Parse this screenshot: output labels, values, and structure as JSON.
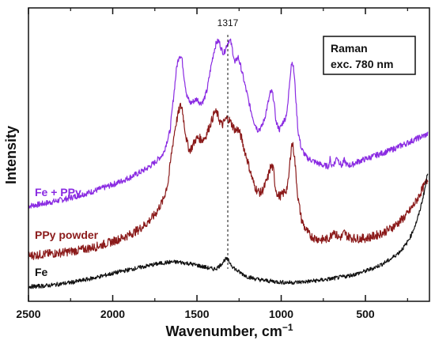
{
  "chart_data": {
    "type": "line",
    "title": "",
    "xlabel": "Wavenumber, cm",
    "xlabel_superscript": "−1",
    "ylabel": "Intensity",
    "xlim": [
      2500,
      120
    ],
    "x_reversed": true,
    "x_ticks": [
      2500,
      2000,
      1500,
      1000,
      500
    ],
    "x_tick_labels": [
      "2500",
      "2000",
      "1500",
      "1000",
      "500"
    ],
    "ylim": [
      0,
      100
    ],
    "y_tick_labels_shown": false,
    "grid": false,
    "annotation": {
      "x": 1317,
      "label": "1317",
      "style": "dashed-vertical-line"
    },
    "info_box": {
      "lines": [
        "Raman",
        "exc. 780 nm"
      ],
      "placement": "top-right"
    },
    "series": [
      {
        "name": "Fe + PPy",
        "color": "#8a2be2",
        "noise": 1.0,
        "points": [
          [
            2500,
            32.5
          ],
          [
            2450,
            32.9
          ],
          [
            2400,
            33.4
          ],
          [
            2350,
            34.0
          ],
          [
            2300,
            34.6
          ],
          [
            2250,
            35.3
          ],
          [
            2200,
            36.1
          ],
          [
            2150,
            36.9
          ],
          [
            2100,
            37.8
          ],
          [
            2050,
            38.8
          ],
          [
            2000,
            39.8
          ],
          [
            1950,
            40.9
          ],
          [
            1900,
            42.2
          ],
          [
            1850,
            43.6
          ],
          [
            1800,
            45.2
          ],
          [
            1750,
            47.3
          ],
          [
            1700,
            50.3
          ],
          [
            1660,
            58.0
          ],
          [
            1640,
            69.0
          ],
          [
            1620,
            80.0
          ],
          [
            1605,
            84.0
          ],
          [
            1590,
            83.0
          ],
          [
            1575,
            76.0
          ],
          [
            1560,
            70.0
          ],
          [
            1540,
            67.5
          ],
          [
            1520,
            68.2
          ],
          [
            1500,
            69.0
          ],
          [
            1480,
            67.5
          ],
          [
            1460,
            68.5
          ],
          [
            1440,
            72.0
          ],
          [
            1420,
            79.0
          ],
          [
            1400,
            85.0
          ],
          [
            1385,
            88.2
          ],
          [
            1370,
            88.8
          ],
          [
            1355,
            86.0
          ],
          [
            1340,
            84.5
          ],
          [
            1325,
            87.0
          ],
          [
            1310,
            89.0
          ],
          [
            1300,
            88.5
          ],
          [
            1290,
            86.0
          ],
          [
            1275,
            81.0
          ],
          [
            1265,
            82.5
          ],
          [
            1255,
            83.2
          ],
          [
            1240,
            80.0
          ],
          [
            1220,
            75.0
          ],
          [
            1200,
            70.0
          ],
          [
            1180,
            65.0
          ],
          [
            1160,
            61.0
          ],
          [
            1140,
            58.5
          ],
          [
            1120,
            59.0
          ],
          [
            1100,
            62.0
          ],
          [
            1080,
            67.0
          ],
          [
            1065,
            71.0
          ],
          [
            1055,
            71.5
          ],
          [
            1045,
            69.0
          ],
          [
            1030,
            61.0
          ],
          [
            1010,
            58.5
          ],
          [
            990,
            61.0
          ],
          [
            975,
            62.5
          ],
          [
            962,
            66.0
          ],
          [
            950,
            75.0
          ],
          [
            940,
            81.0
          ],
          [
            932,
            81.5
          ],
          [
            922,
            77.0
          ],
          [
            912,
            68.0
          ],
          [
            900,
            58.0
          ],
          [
            880,
            52.0
          ],
          [
            850,
            49.0
          ],
          [
            800,
            47.5
          ],
          [
            750,
            46.3
          ],
          [
            720,
            46.0
          ],
          [
            710,
            48.5
          ],
          [
            700,
            46.2
          ],
          [
            680,
            47.3
          ],
          [
            670,
            49.5
          ],
          [
            660,
            48.0
          ],
          [
            640,
            46.0
          ],
          [
            625,
            48.2
          ],
          [
            610,
            46.3
          ],
          [
            580,
            46.5
          ],
          [
            550,
            47.5
          ],
          [
            500,
            48.5
          ],
          [
            450,
            49.5
          ],
          [
            400,
            50.5
          ],
          [
            350,
            51.5
          ],
          [
            300,
            52.8
          ],
          [
            250,
            54.0
          ],
          [
            200,
            55.3
          ],
          [
            160,
            56.3
          ],
          [
            130,
            57.0
          ]
        ]
      },
      {
        "name": "PPy powder",
        "color": "#8b1a1a",
        "noise": 1.5,
        "points": [
          [
            2500,
            15.5
          ],
          [
            2450,
            15.8
          ],
          [
            2400,
            16.1
          ],
          [
            2350,
            16.3
          ],
          [
            2300,
            16.6
          ],
          [
            2250,
            17.0
          ],
          [
            2200,
            17.4
          ],
          [
            2150,
            18.0
          ],
          [
            2100,
            18.6
          ],
          [
            2050,
            19.5
          ],
          [
            2000,
            20.4
          ],
          [
            1950,
            21.5
          ],
          [
            1900,
            22.7
          ],
          [
            1850,
            24.3
          ],
          [
            1800,
            26.5
          ],
          [
            1750,
            29.5
          ],
          [
            1700,
            34.5
          ],
          [
            1670,
            41.0
          ],
          [
            1650,
            51.0
          ],
          [
            1630,
            59.0
          ],
          [
            1615,
            63.0
          ],
          [
            1600,
            66.5
          ],
          [
            1588,
            66.0
          ],
          [
            1575,
            60.0
          ],
          [
            1560,
            54.5
          ],
          [
            1545,
            51.5
          ],
          [
            1530,
            52.5
          ],
          [
            1510,
            55.0
          ],
          [
            1490,
            55.8
          ],
          [
            1470,
            55.0
          ],
          [
            1450,
            56.0
          ],
          [
            1430,
            59.0
          ],
          [
            1410,
            62.0
          ],
          [
            1395,
            64.5
          ],
          [
            1380,
            64.0
          ],
          [
            1365,
            61.5
          ],
          [
            1350,
            60.0
          ],
          [
            1335,
            61.5
          ],
          [
            1320,
            62.5
          ],
          [
            1305,
            61.5
          ],
          [
            1290,
            60.0
          ],
          [
            1270,
            58.0
          ],
          [
            1260,
            58.8
          ],
          [
            1250,
            58.0
          ],
          [
            1235,
            55.5
          ],
          [
            1220,
            52.0
          ],
          [
            1200,
            48.0
          ],
          [
            1180,
            43.5
          ],
          [
            1160,
            39.5
          ],
          [
            1140,
            37.5
          ],
          [
            1120,
            37.0
          ],
          [
            1100,
            39.0
          ],
          [
            1080,
            42.0
          ],
          [
            1065,
            45.5
          ],
          [
            1055,
            46.0
          ],
          [
            1045,
            44.5
          ],
          [
            1035,
            39.0
          ],
          [
            1020,
            36.0
          ],
          [
            1000,
            36.0
          ],
          [
            985,
            37.0
          ],
          [
            970,
            38.0
          ],
          [
            958,
            40.5
          ],
          [
            948,
            47.5
          ],
          [
            940,
            53.0
          ],
          [
            932,
            53.5
          ],
          [
            922,
            50.0
          ],
          [
            912,
            43.0
          ],
          [
            900,
            35.0
          ],
          [
            880,
            28.0
          ],
          [
            860,
            25.0
          ],
          [
            830,
            22.5
          ],
          [
            800,
            21.5
          ],
          [
            760,
            21.0
          ],
          [
            720,
            21.3
          ],
          [
            700,
            22.8
          ],
          [
            690,
            24.5
          ],
          [
            678,
            23.0
          ],
          [
            660,
            21.8
          ],
          [
            640,
            22.0
          ],
          [
            625,
            23.5
          ],
          [
            610,
            22.3
          ],
          [
            580,
            21.6
          ],
          [
            550,
            21.4
          ],
          [
            500,
            21.5
          ],
          [
            450,
            22.2
          ],
          [
            400,
            23.3
          ],
          [
            350,
            24.8
          ],
          [
            300,
            27.0
          ],
          [
            250,
            29.8
          ],
          [
            200,
            34.0
          ],
          [
            160,
            38.5
          ],
          [
            130,
            41.5
          ]
        ]
      },
      {
        "name": "Fe",
        "color": "#111111",
        "noise": 0.7,
        "points": [
          [
            2500,
            5.0
          ],
          [
            2450,
            5.1
          ],
          [
            2400,
            5.3
          ],
          [
            2350,
            5.6
          ],
          [
            2300,
            6.0
          ],
          [
            2250,
            6.4
          ],
          [
            2200,
            6.9
          ],
          [
            2150,
            7.5
          ],
          [
            2100,
            8.1
          ],
          [
            2050,
            8.8
          ],
          [
            2000,
            9.5
          ],
          [
            1950,
            10.2
          ],
          [
            1900,
            10.8
          ],
          [
            1850,
            11.4
          ],
          [
            1800,
            12.0
          ],
          [
            1750,
            12.6
          ],
          [
            1700,
            13.1
          ],
          [
            1650,
            13.4
          ],
          [
            1600,
            13.3
          ],
          [
            1550,
            12.9
          ],
          [
            1500,
            12.3
          ],
          [
            1450,
            11.6
          ],
          [
            1420,
            11.2
          ],
          [
            1400,
            11.0
          ],
          [
            1380,
            11.4
          ],
          [
            1360,
            12.4
          ],
          [
            1345,
            13.4
          ],
          [
            1335,
            14.2
          ],
          [
            1325,
            14.4
          ],
          [
            1315,
            14.0
          ],
          [
            1305,
            13.2
          ],
          [
            1290,
            12.0
          ],
          [
            1270,
            10.8
          ],
          [
            1250,
            10.0
          ],
          [
            1220,
            9.0
          ],
          [
            1200,
            8.4
          ],
          [
            1150,
            7.6
          ],
          [
            1100,
            7.1
          ],
          [
            1050,
            6.8
          ],
          [
            1000,
            6.5
          ],
          [
            950,
            6.4
          ],
          [
            900,
            6.5
          ],
          [
            850,
            6.7
          ],
          [
            800,
            7.0
          ],
          [
            750,
            7.3
          ],
          [
            700,
            7.7
          ],
          [
            650,
            8.2
          ],
          [
            600,
            8.7
          ],
          [
            550,
            9.4
          ],
          [
            500,
            10.3
          ],
          [
            450,
            11.4
          ],
          [
            400,
            12.7
          ],
          [
            350,
            14.4
          ],
          [
            300,
            16.7
          ],
          [
            260,
            19.3
          ],
          [
            230,
            22.4
          ],
          [
            200,
            26.6
          ],
          [
            180,
            30.2
          ],
          [
            160,
            35.0
          ],
          [
            145,
            39.0
          ],
          [
            130,
            44.0
          ]
        ]
      }
    ]
  },
  "labels": {
    "fe_ppy": "Fe + PPy",
    "ppy_powder": "PPy powder",
    "fe": "Fe"
  }
}
